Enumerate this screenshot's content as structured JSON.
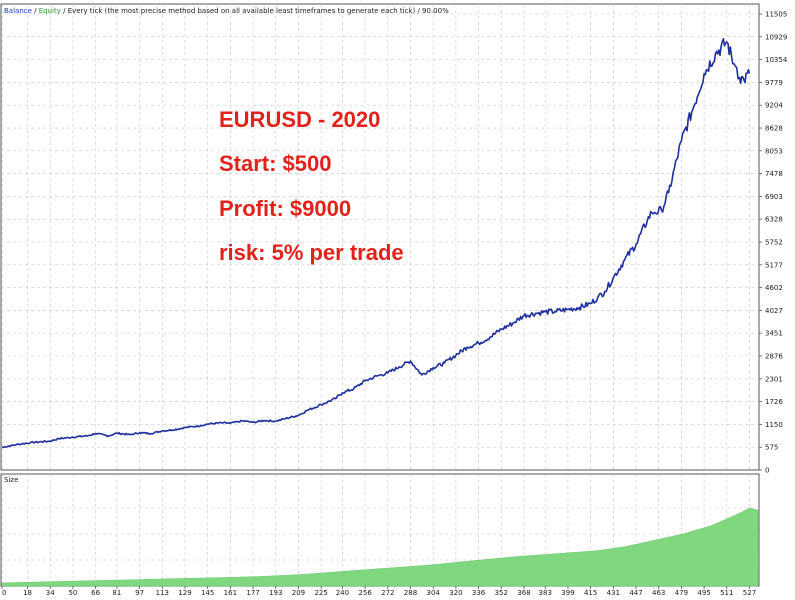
{
  "header": {
    "balance_label": "Balance",
    "equity_label": "Equity",
    "description": "Every tick (the most precise method based on all available least timeframes to generate each tick)",
    "quality": "90.00%"
  },
  "overlay": {
    "line1": "EURUSD - 2020",
    "line2": "Start: $500",
    "line3": "Profit: $9000",
    "line4": "risk: 5% per trade"
  },
  "colors": {
    "balance": "#1f2f9f",
    "equity": "#2a9d2a",
    "volume": "#7fd77f",
    "overlay": "#e3211b",
    "grid": "#c8c8c8"
  },
  "chart_data": [
    {
      "type": "line",
      "series": [
        {
          "name": "Balance",
          "x": [
            0,
            10,
            20,
            34,
            40,
            50,
            60,
            66,
            75,
            81,
            90,
            97,
            105,
            113,
            120,
            129,
            140,
            145,
            155,
            161,
            170,
            177,
            185,
            193,
            200,
            209,
            215,
            225,
            235,
            240,
            248,
            256,
            265,
            272,
            280,
            288,
            296,
            304,
            312,
            320,
            328,
            336,
            344,
            352,
            360,
            368,
            376,
            383,
            390,
            399,
            407,
            415,
            420,
            425,
            431,
            439,
            447,
            455,
            458,
            460,
            465,
            470,
            479,
            487,
            495,
            503,
            511,
            516,
            518,
            520,
            523,
            527
          ],
          "y": [
            570,
            640,
            690,
            730,
            790,
            830,
            860,
            920,
            860,
            930,
            890,
            940,
            920,
            990,
            1010,
            1070,
            1120,
            1160,
            1190,
            1180,
            1240,
            1200,
            1250,
            1230,
            1300,
            1380,
            1500,
            1650,
            1800,
            1950,
            2050,
            2250,
            2380,
            2450,
            2600,
            2750,
            2400,
            2580,
            2700,
            2900,
            3100,
            3200,
            3350,
            3550,
            3700,
            3900,
            3950,
            3990,
            4000,
            4050,
            4100,
            4200,
            4350,
            4500,
            4850,
            5300,
            5700,
            6300,
            6500,
            6500,
            6550,
            7000,
            8300,
            9100,
            10000,
            10500,
            10800,
            10250,
            10150,
            9900,
            9850,
            10000
          ]
        }
      ],
      "yticks": [
        0,
        575,
        1150,
        1726,
        2301,
        2876,
        3451,
        4027,
        4602,
        5177,
        5752,
        6328,
        6903,
        7478,
        8053,
        8628,
        9204,
        9779,
        10354,
        10929,
        11505
      ],
      "xticks": [
        0,
        18,
        34,
        50,
        66,
        81,
        97,
        113,
        129,
        145,
        161,
        177,
        193,
        209,
        225,
        240,
        256,
        272,
        288,
        304,
        320,
        336,
        352,
        368,
        383,
        399,
        415,
        431,
        447,
        463,
        479,
        495,
        511,
        527
      ],
      "ylim": [
        0,
        11505
      ],
      "xlim": [
        0,
        533
      ],
      "grid": true
    },
    {
      "type": "area",
      "title": "Size",
      "x": [
        0,
        30,
        60,
        90,
        120,
        150,
        180,
        210,
        240,
        270,
        300,
        330,
        360,
        390,
        420,
        440,
        460,
        480,
        500,
        520,
        527,
        533
      ],
      "values": [
        0.03,
        0.04,
        0.05,
        0.06,
        0.07,
        0.08,
        0.09,
        0.11,
        0.14,
        0.17,
        0.2,
        0.24,
        0.28,
        0.31,
        0.34,
        0.38,
        0.44,
        0.5,
        0.58,
        0.7,
        0.75,
        0.73
      ],
      "ylim": [
        0,
        1
      ],
      "grid": true
    }
  ]
}
